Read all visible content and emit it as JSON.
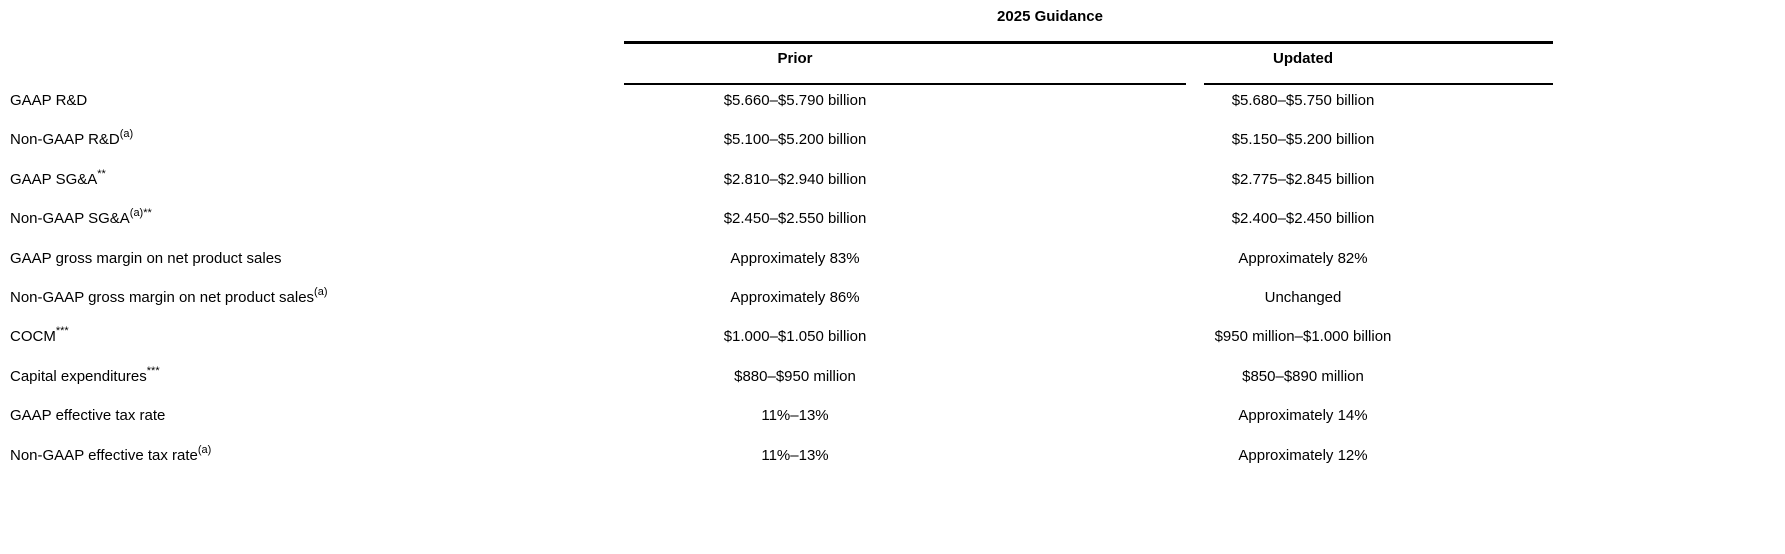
{
  "table": {
    "title": "2025 Guidance",
    "prior_label": "Prior",
    "updated_label": "Updated",
    "rows": [
      {
        "label": "GAAP R&D",
        "sup": "",
        "prior": "$5.660–$5.790 billion",
        "updated": "$5.680–$5.750 billion"
      },
      {
        "label": "Non-GAAP R&D",
        "sup": "(a)",
        "prior": "$5.100–$5.200 billion",
        "updated": "$5.150–$5.200 billion"
      },
      {
        "label": "GAAP SG&A",
        "sup": "**",
        "prior": "$2.810–$2.940 billion",
        "updated": "$2.775–$2.845 billion"
      },
      {
        "label": "Non-GAAP SG&A",
        "sup": "(a)**",
        "prior": "$2.450–$2.550 billion",
        "updated": "$2.400–$2.450 billion"
      },
      {
        "label": "GAAP gross margin on net product sales",
        "sup": "",
        "prior": "Approximately 83%",
        "updated": "Approximately 82%"
      },
      {
        "label": "Non-GAAP gross margin on net product sales",
        "sup": "(a)",
        "prior": "Approximately 86%",
        "updated": "Unchanged"
      },
      {
        "label": "COCM",
        "sup": "***",
        "prior": "$1.000–$1.050 billion",
        "updated": "$950 million–$1.000 billion"
      },
      {
        "label": "Capital expenditures",
        "sup": "***",
        "prior": "$880–$950 million",
        "updated": "$850–$890 million"
      },
      {
        "label": "GAAP effective tax rate",
        "sup": "",
        "prior": "11%–13%",
        "updated": "Approximately 14%"
      },
      {
        "label": "Non-GAAP effective tax rate",
        "sup": "(a)",
        "prior": "11%–13%",
        "updated": "Approximately 12%"
      }
    ]
  }
}
